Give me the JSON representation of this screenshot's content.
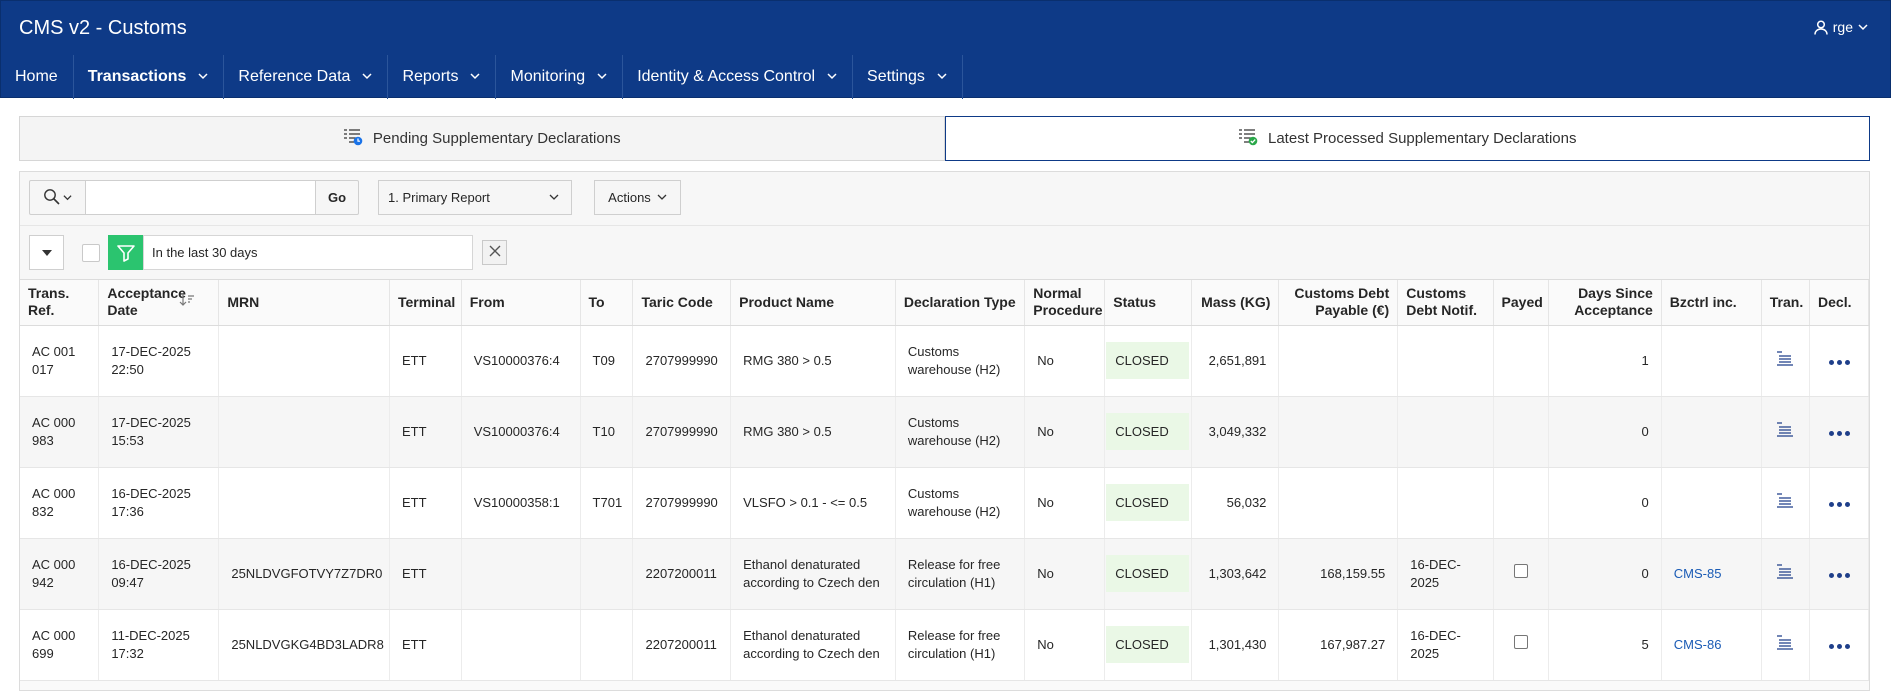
{
  "app": {
    "title": "CMS v2 - Customs",
    "user": "rge"
  },
  "nav": [
    {
      "label": "Home",
      "active": false,
      "dropdown": false
    },
    {
      "label": "Transactions",
      "active": true,
      "dropdown": true
    },
    {
      "label": "Reference Data",
      "active": false,
      "dropdown": true
    },
    {
      "label": "Reports",
      "active": false,
      "dropdown": true
    },
    {
      "label": "Monitoring",
      "active": false,
      "dropdown": true
    },
    {
      "label": "Identity & Access Control",
      "active": false,
      "dropdown": true
    },
    {
      "label": "Settings",
      "active": false,
      "dropdown": true
    }
  ],
  "tabs": [
    {
      "label": "Pending Supplementary Declarations",
      "selected": false
    },
    {
      "label": "Latest Processed Supplementary Declarations",
      "selected": true
    }
  ],
  "toolbar": {
    "search_value": "",
    "go_label": "Go",
    "report_label": "1. Primary Report",
    "actions_label": "Actions"
  },
  "filter": {
    "label": "In the last 30 days"
  },
  "table": {
    "headers": {
      "trans_ref": "Trans. Ref.",
      "acceptance_date": "Acceptance Date",
      "mrn": "MRN",
      "terminal": "Terminal",
      "from": "From",
      "to": "To",
      "taric_code": "Taric Code",
      "product_name": "Product Name",
      "declaration_type": "Declaration Type",
      "normal_procedure": "Normal Procedure",
      "status": "Status",
      "mass": "Mass (KG)",
      "customs_debt_payable": "Customs Debt Payable (€)",
      "customs_debt_notif": "Customs Debt Notif.",
      "payed": "Payed",
      "days_since_acceptance": "Days Since Acceptance",
      "bzctrl_inc": "Bzctrl inc.",
      "tran": "Tran.",
      "decl": "Decl."
    },
    "rows": [
      {
        "trans_ref": "AC 001 017",
        "acceptance_date": "17-DEC-2025 22:50",
        "mrn": "",
        "terminal": "ETT",
        "from": "VS10000376:4",
        "to": "T09",
        "taric_code": "2707999990",
        "product_name": "RMG 380 > 0.5",
        "declaration_type": "Customs warehouse (H2)",
        "normal_procedure": "No",
        "status": "CLOSED",
        "mass": "2,651,891",
        "customs_debt_payable": "",
        "customs_debt_notif": "",
        "payed_checkbox": false,
        "days_since_acceptance": "1",
        "bzctrl_inc": ""
      },
      {
        "trans_ref": "AC 000 983",
        "acceptance_date": "17-DEC-2025 15:53",
        "mrn": "",
        "terminal": "ETT",
        "from": "VS10000376:4",
        "to": "T10",
        "taric_code": "2707999990",
        "product_name": "RMG 380 > 0.5",
        "declaration_type": "Customs warehouse (H2)",
        "normal_procedure": "No",
        "status": "CLOSED",
        "mass": "3,049,332",
        "customs_debt_payable": "",
        "customs_debt_notif": "",
        "payed_checkbox": false,
        "days_since_acceptance": "0",
        "bzctrl_inc": ""
      },
      {
        "trans_ref": "AC 000 832",
        "acceptance_date": "16-DEC-2025 17:36",
        "mrn": "",
        "terminal": "ETT",
        "from": "VS10000358:1",
        "to": "T701",
        "taric_code": "2707999990",
        "product_name": "VLSFO > 0.1 - <= 0.5",
        "declaration_type": "Customs warehouse (H2)",
        "normal_procedure": "No",
        "status": "CLOSED",
        "mass": "56,032",
        "customs_debt_payable": "",
        "customs_debt_notif": "",
        "payed_checkbox": false,
        "days_since_acceptance": "0",
        "bzctrl_inc": ""
      },
      {
        "trans_ref": "AC 000 942",
        "acceptance_date": "16-DEC-2025 09:47",
        "mrn": "25NLDVGFOTVY7Z7DR0",
        "terminal": "ETT",
        "from": "",
        "to": "",
        "taric_code": "2207200011",
        "product_name": "Ethanol denaturated according to Czech den",
        "declaration_type": "Release for free circulation (H1)",
        "normal_procedure": "No",
        "status": "CLOSED",
        "mass": "1,303,642",
        "customs_debt_payable": "168,159.55",
        "customs_debt_notif": "16-DEC-2025",
        "payed_checkbox": true,
        "days_since_acceptance": "0",
        "bzctrl_inc": "CMS-85"
      },
      {
        "trans_ref": "AC 000 699",
        "acceptance_date": "11-DEC-2025 17:32",
        "mrn": "25NLDVGKG4BD3LADR8",
        "terminal": "ETT",
        "from": "",
        "to": "",
        "taric_code": "2207200011",
        "product_name": "Ethanol denaturated according to Czech den",
        "declaration_type": "Release for free circulation (H1)",
        "normal_procedure": "No",
        "status": "CLOSED",
        "mass": "1,301,430",
        "customs_debt_payable": "167,987.27",
        "customs_debt_notif": "16-DEC-2025",
        "payed_checkbox": true,
        "days_since_acceptance": "5",
        "bzctrl_inc": "CMS-86"
      }
    ]
  },
  "colors": {
    "header_bg": "#0e3a87",
    "status_bg": "#eaf8e6",
    "filter_green": "#2bc46f",
    "link": "#1a5bb5"
  }
}
